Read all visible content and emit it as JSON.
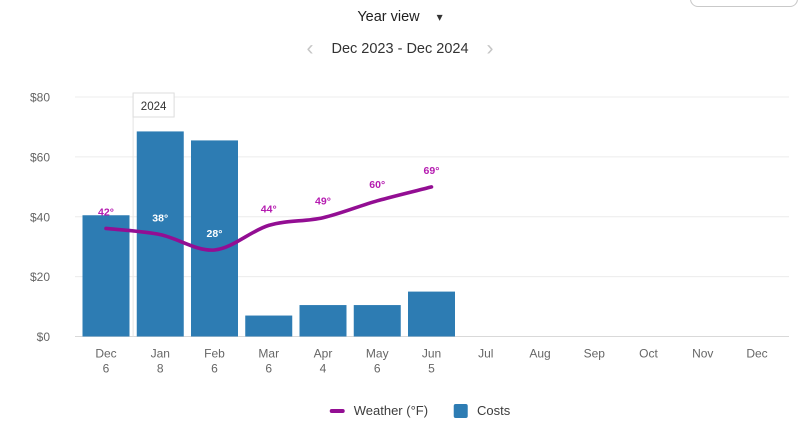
{
  "header": {
    "view_label": "Year view",
    "period_label": "Dec 2023 - Dec 2024",
    "prev_glyph": "‹",
    "next_glyph": "›",
    "caret_glyph": "▾"
  },
  "legend": {
    "weather_label": "Weather (°F)",
    "costs_label": "Costs"
  },
  "colors": {
    "bar": "#2d7cb3",
    "line": "#930e93",
    "temp_label": "#b51bb0",
    "temp_label_on_bar": "#ffffff",
    "axis_text": "#666666",
    "gridline": "#ececec",
    "axis_line": "#d9d9d9",
    "year_line": "#e3e3e3",
    "year_box_border": "#dddddd",
    "year_text": "#333333"
  },
  "chart_data": {
    "type": "bar+line",
    "categories_month": [
      "Dec",
      "Jan",
      "Feb",
      "Mar",
      "Apr",
      "May",
      "Jun",
      "Jul",
      "Aug",
      "Sep",
      "Oct",
      "Nov",
      "Dec"
    ],
    "categories_day": [
      "6",
      "8",
      "6",
      "6",
      "4",
      "6",
      "5",
      "",
      "",
      "",
      "",
      "",
      ""
    ],
    "series": [
      {
        "name": "Costs",
        "type": "bar",
        "unit": "$",
        "values": [
          40.5,
          68.5,
          65.5,
          7,
          10.5,
          10.5,
          15
        ]
      },
      {
        "name": "Weather (°F)",
        "type": "line",
        "unit": "°F",
        "values": [
          42,
          38,
          28,
          44,
          49,
          60,
          69
        ],
        "point_labels": [
          "42°",
          "38°",
          "28°",
          "44°",
          "49°",
          "60°",
          "69°"
        ],
        "labels_inside_bar_indices": [
          1,
          2
        ]
      }
    ],
    "yticks_labels": [
      "$0",
      "$20",
      "$40",
      "$60",
      "$80"
    ],
    "yticks_values": [
      0,
      20,
      40,
      60,
      80
    ],
    "ylim": [
      0,
      80
    ],
    "year_marker": "2024",
    "grid": true,
    "legend_position": "bottom"
  }
}
